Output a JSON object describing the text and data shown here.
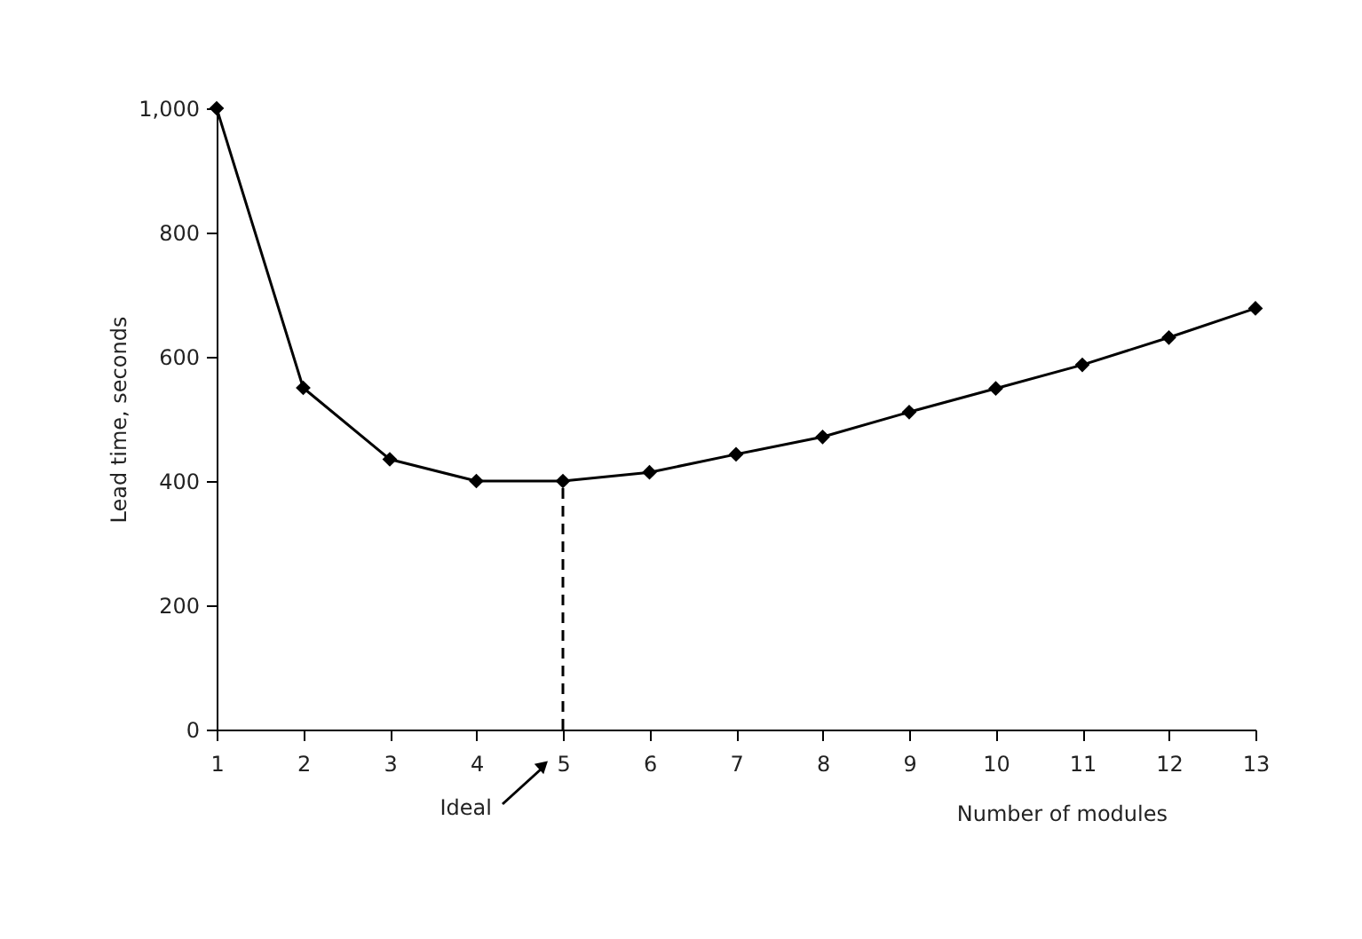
{
  "chart_data": {
    "type": "line",
    "xlabel": "Number of modules",
    "ylabel": "Lead time, seconds",
    "x": [
      1,
      2,
      3,
      4,
      5,
      6,
      7,
      8,
      9,
      10,
      11,
      12,
      13
    ],
    "series": [
      {
        "color": "#000000",
        "values": [
          1000,
          550,
          435,
          400,
          400,
          414,
          443,
          471,
          511,
          549,
          587,
          631,
          678
        ]
      }
    ],
    "xlim": [
      1,
      13
    ],
    "xticks": [
      1,
      2,
      3,
      4,
      5,
      6,
      7,
      8,
      9,
      10,
      11,
      12,
      13
    ],
    "ylim": [
      0,
      1000
    ],
    "yticks": [
      0,
      200,
      400,
      600,
      800,
      {
        "value": 1000,
        "label": "1,000"
      }
    ],
    "grid": false,
    "marker": "diamond",
    "line_style": "solid",
    "ref_lines": [
      {
        "axis": "x",
        "value": 5,
        "label": "Ideal",
        "line_style": "dashed",
        "color": "#000000"
      }
    ]
  }
}
